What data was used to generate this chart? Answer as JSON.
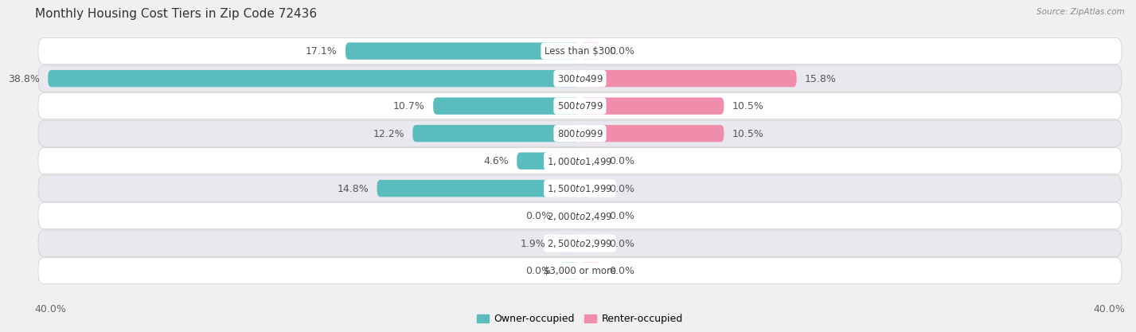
{
  "title": "Monthly Housing Cost Tiers in Zip Code 72436",
  "source": "Source: ZipAtlas.com",
  "categories": [
    "Less than $300",
    "$300 to $499",
    "$500 to $799",
    "$800 to $999",
    "$1,000 to $1,499",
    "$1,500 to $1,999",
    "$2,000 to $2,499",
    "$2,500 to $2,999",
    "$3,000 or more"
  ],
  "owner_values": [
    17.1,
    38.8,
    10.7,
    12.2,
    4.6,
    14.8,
    0.0,
    1.9,
    0.0
  ],
  "renter_values": [
    0.0,
    15.8,
    10.5,
    10.5,
    0.0,
    0.0,
    0.0,
    0.0,
    0.0
  ],
  "owner_color": "#5bbcbe",
  "renter_color": "#f08dab",
  "owner_color_dark": "#3a9fa1",
  "axis_max": 40.0,
  "bar_height": 0.62,
  "bg_color": "#f0f0f0",
  "row_bg_even": "#ffffff",
  "row_bg_odd": "#e8e8ee",
  "row_border": "#cccccc",
  "title_fontsize": 11,
  "label_fontsize": 9,
  "category_fontsize": 8.5,
  "axis_label_fontsize": 9,
  "stub_size": 1.5
}
